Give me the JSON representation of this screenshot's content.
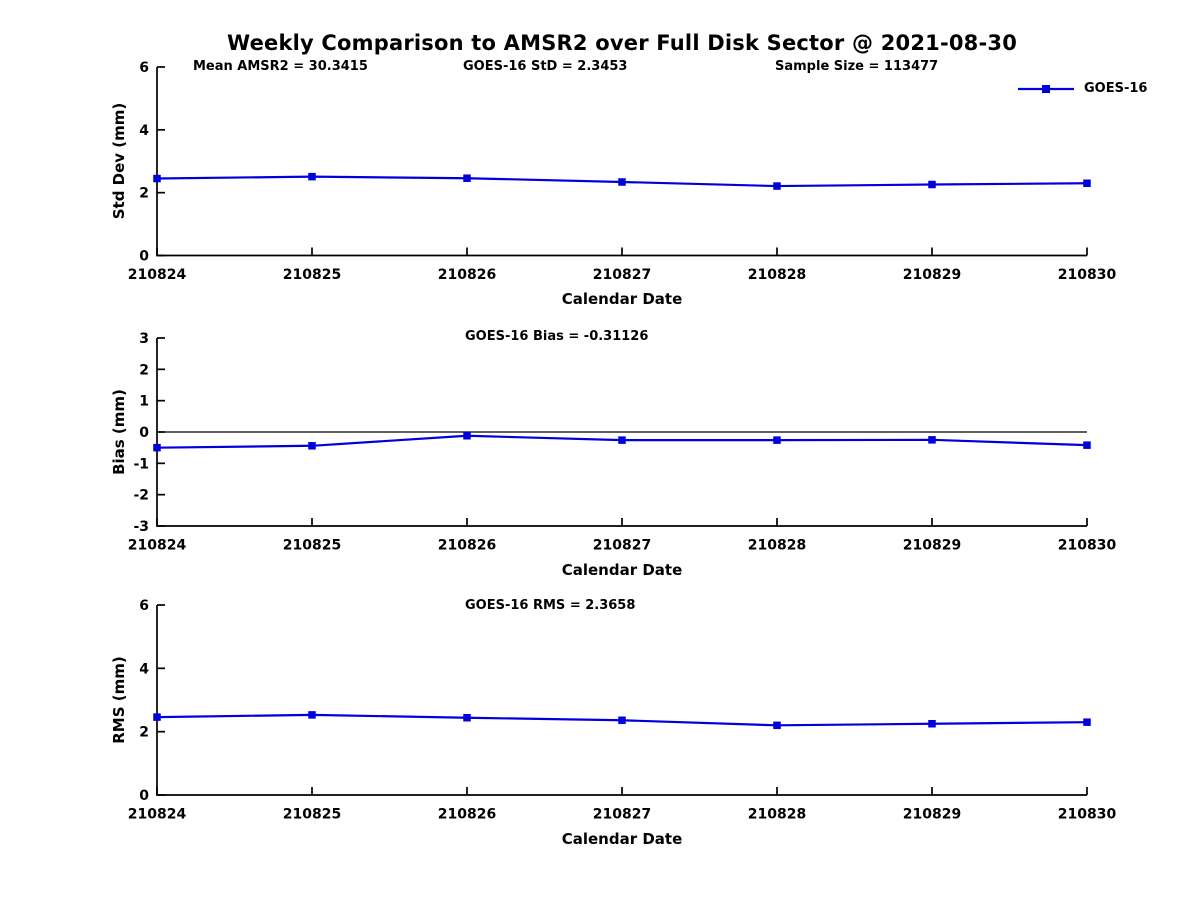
{
  "title": "Weekly Comparison to AMSR2 over Full Disk Sector @ 2021-08-30",
  "stats": {
    "mean_amsr2": "Mean AMSR2 = 30.3415",
    "goes16_std": "GOES-16 StD = 2.3453",
    "sample_size": "Sample Size = 113477",
    "goes16_bias": "GOES-16 Bias  = -0.31126",
    "goes16_rms": "GOES-16 RMS = 2.3658"
  },
  "legend": {
    "label": "GOES-16"
  },
  "colors": {
    "line": "#0000dd",
    "marker": "#0000dd",
    "axis": "#000000",
    "zero_line": "#000000",
    "text": "#000000"
  },
  "chart_data": [
    {
      "type": "line",
      "panel": "std-dev",
      "ylabel": "Std Dev (mm)",
      "xlabel": "Calendar Date",
      "x": [
        "210824",
        "210825",
        "210826",
        "210827",
        "210828",
        "210829",
        "210830"
      ],
      "series": [
        {
          "name": "GOES-16",
          "values": [
            2.45,
            2.51,
            2.46,
            2.34,
            2.21,
            2.26,
            2.3
          ]
        }
      ],
      "ylim": [
        0,
        6
      ],
      "yticks": [
        0,
        2,
        4,
        6
      ],
      "zero_line": false,
      "grid": false,
      "legend_position": "top-right"
    },
    {
      "type": "line",
      "panel": "bias",
      "ylabel": "Bias (mm)",
      "xlabel": "Calendar Date",
      "x": [
        "210824",
        "210825",
        "210826",
        "210827",
        "210828",
        "210829",
        "210830"
      ],
      "series": [
        {
          "name": "GOES-16",
          "values": [
            -0.5,
            -0.44,
            -0.12,
            -0.26,
            -0.26,
            -0.25,
            -0.42
          ]
        }
      ],
      "ylim": [
        -3,
        3
      ],
      "yticks": [
        -3,
        -2,
        -1,
        0,
        1,
        2,
        3
      ],
      "zero_line": true,
      "grid": false,
      "legend_position": "none"
    },
    {
      "type": "line",
      "panel": "rms",
      "ylabel": "RMS (mm)",
      "xlabel": "Calendar Date",
      "x": [
        "210824",
        "210825",
        "210826",
        "210827",
        "210828",
        "210829",
        "210830"
      ],
      "series": [
        {
          "name": "GOES-16",
          "values": [
            2.46,
            2.53,
            2.44,
            2.36,
            2.2,
            2.25,
            2.3
          ]
        }
      ],
      "ylim": [
        0,
        6
      ],
      "yticks": [
        0,
        2,
        4,
        6
      ],
      "zero_line": false,
      "grid": false,
      "legend_position": "none"
    }
  ]
}
